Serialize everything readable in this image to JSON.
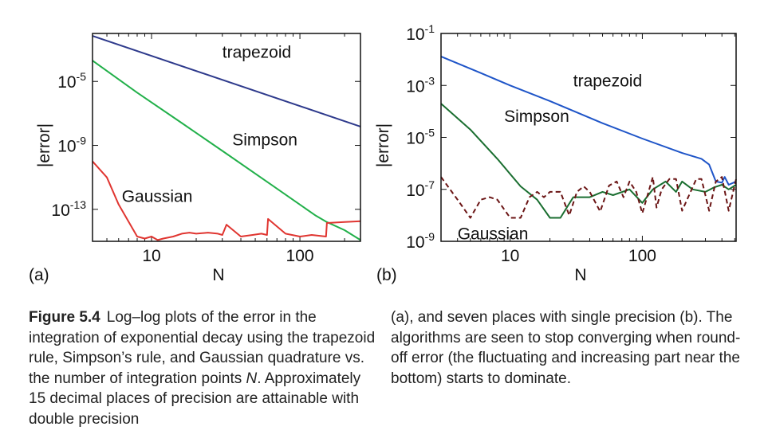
{
  "chart_data": [
    {
      "panel_label": "(a)",
      "type": "line",
      "log_x": true,
      "log_y": true,
      "xlabel": "N",
      "ylabel": "|error|",
      "xlim": [
        4,
        256
      ],
      "ylim": [
        1e-15,
        0.01
      ],
      "xticks": [
        {
          "value": 10,
          "label": "10"
        },
        {
          "value": 100,
          "label": "100"
        }
      ],
      "yticks": [
        {
          "value": 1e-05,
          "base": "10",
          "exp": "-5"
        },
        {
          "value": 1e-09,
          "base": "10",
          "exp": "-9"
        },
        {
          "value": 1e-13,
          "base": "10",
          "exp": "-13"
        }
      ],
      "grid": false,
      "series": [
        {
          "name": "trapezoid",
          "color": "#2e3a8c",
          "dash": "",
          "label_at": [
            30,
            0.0003
          ],
          "x": [
            4,
            256
          ],
          "y": [
            0.007,
            1.5e-08
          ]
        },
        {
          "name": "Simpson",
          "color": "#22b04a",
          "dash": "",
          "label_at": [
            35,
            1e-09
          ],
          "x": [
            4,
            8,
            16,
            32,
            64,
            128,
            150,
            200,
            256
          ],
          "y": [
            0.0002,
            2e-06,
            2.5e-08,
            3e-10,
            3.5e-12,
            4e-14,
            1.7e-14,
            5e-15,
            1.2e-15
          ]
        },
        {
          "name": "Gaussian",
          "color": "#e03530",
          "dash": "",
          "label_at": [
            6.3,
            3e-13
          ],
          "x": [
            4,
            5,
            6,
            8,
            9,
            10,
            11,
            12,
            14,
            16,
            18,
            20,
            24,
            28,
            30,
            32,
            40,
            48,
            55,
            60,
            61,
            80,
            100,
            120,
            150,
            152,
            200,
            256
          ],
          "y": [
            1e-10,
            1e-11,
            2e-13,
            2e-15,
            1.5e-15,
            2e-15,
            1.2e-15,
            1.5e-15,
            2e-15,
            3e-15,
            3.5e-15,
            3e-15,
            3.5e-15,
            3e-15,
            2.5e-15,
            1.1e-14,
            2e-15,
            2.5e-15,
            3e-15,
            2.5e-15,
            2.5e-14,
            3e-15,
            2e-15,
            2.5e-15,
            2e-15,
            1.4e-14,
            1.6e-14,
            1.8e-14
          ]
        }
      ]
    },
    {
      "panel_label": "(b)",
      "type": "line",
      "log_x": true,
      "log_y": true,
      "xlabel": "N",
      "ylabel": "|error|",
      "xlim": [
        3,
        512
      ],
      "ylim": [
        1e-09,
        0.1
      ],
      "xticks": [
        {
          "value": 10,
          "label": "10"
        },
        {
          "value": 100,
          "label": "100"
        }
      ],
      "yticks": [
        {
          "value": 0.1,
          "base": "10",
          "exp": "-1"
        },
        {
          "value": 0.001,
          "base": "10",
          "exp": "-3"
        },
        {
          "value": 1e-05,
          "base": "10",
          "exp": "-5"
        },
        {
          "value": 1e-07,
          "base": "10",
          "exp": "-7"
        },
        {
          "value": 1e-09,
          "base": "10",
          "exp": "-9"
        }
      ],
      "grid": false,
      "series": [
        {
          "name": "trapezoid",
          "color": "#1f55c8",
          "dash": "",
          "label_at": [
            30,
            0.0009
          ],
          "x": [
            3,
            6,
            10,
            20,
            50,
            100,
            200,
            280,
            320,
            360,
            400,
            420,
            450,
            512
          ],
          "y": [
            0.013,
            0.003,
            0.001,
            0.00025,
            3.5e-05,
            9e-06,
            2.5e-06,
            1.5e-06,
            9e-07,
            2e-07,
            1.8e-07,
            3e-07,
            1.5e-07,
            2e-07
          ]
        },
        {
          "name": "Simpson",
          "color": "#1a6e30",
          "dash": "",
          "label_at": [
            9,
            4e-05
          ],
          "x": [
            3,
            5,
            8,
            12,
            16,
            20,
            24,
            30,
            40,
            50,
            60,
            80,
            100,
            120,
            150,
            180,
            200,
            240,
            300,
            350,
            400,
            450,
            512
          ],
          "y": [
            0.0002,
            2e-05,
            1.5e-06,
            1.3e-07,
            4e-08,
            8e-09,
            8e-09,
            5e-08,
            5e-08,
            8e-08,
            6e-08,
            1e-07,
            3e-08,
            1e-07,
            2e-07,
            8e-08,
            2e-07,
            1e-07,
            8e-08,
            1.2e-07,
            1.5e-07,
            1e-07,
            1.5e-07
          ]
        },
        {
          "name": "Gaussian",
          "color": "#6b1515",
          "dash": "6 4",
          "label_at": [
            4,
            1.2e-09
          ],
          "x": [
            3,
            4,
            5,
            6,
            7,
            8,
            10,
            12,
            14,
            16,
            18,
            20,
            24,
            28,
            32,
            36,
            40,
            48,
            56,
            64,
            72,
            80,
            90,
            100,
            120,
            128,
            140,
            160,
            180,
            200,
            256,
            280,
            320,
            360,
            400,
            450,
            512
          ],
          "y": [
            3e-07,
            4e-08,
            8e-09,
            4e-08,
            5e-08,
            4e-08,
            8e-09,
            8e-09,
            5e-08,
            8e-08,
            5e-08,
            8e-08,
            8e-08,
            1e-08,
            8e-08,
            1.3e-07,
            8e-08,
            1.4e-08,
            1.4e-07,
            2e-07,
            5e-08,
            2e-07,
            8e-08,
            1.2e-08,
            3e-07,
            2e-08,
            1e-07,
            2.5e-07,
            2.5e-07,
            1.5e-08,
            2.5e-07,
            2.5e-07,
            1.5e-08,
            2e-07,
            3e-07,
            1.5e-08,
            2.5e-07
          ]
        }
      ]
    }
  ],
  "caption": {
    "figure_label": "Figure 5.4",
    "left_text_pre": "Log–log plots of the error in the integration of exponential decay using the trapezoid rule, Simpson’s rule, and Gaussian quadrature vs. the number of integration points ",
    "left_italic": "N",
    "left_text_post": ". Approximately 15 decimal places of precision are attainable with double precision",
    "right_text": "(a), and seven places with single precision (b). The algorithms are seen to stop converging when round-off error (the fluctuating and increasing part near the bottom) starts to dominate."
  }
}
